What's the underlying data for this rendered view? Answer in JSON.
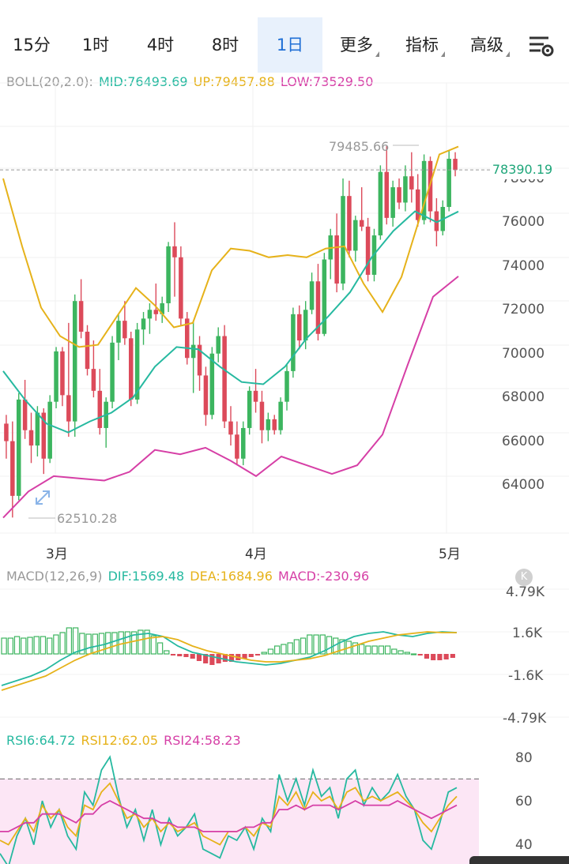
{
  "tabs": [
    {
      "label": "15分",
      "active": false
    },
    {
      "label": "1时",
      "active": false
    },
    {
      "label": "4时",
      "active": false
    },
    {
      "label": "8时",
      "active": false
    },
    {
      "label": "1日",
      "active": true
    },
    {
      "label": "更多",
      "dropdown": true
    },
    {
      "label": "指标",
      "dropdown": true
    },
    {
      "label": "高级",
      "dropdown": true
    }
  ],
  "settings_icon": "chart-settings-icon",
  "boll": {
    "name": "BOLL(20,2.0):",
    "mid": "MID:76493.69",
    "up": "UP:79457.88",
    "low": "LOW:73529.50",
    "colors": {
      "mid": "#26b9a0",
      "up": "#e6b21a",
      "low": "#d63fa6"
    }
  },
  "price": {
    "current": "78390.19",
    "high_label": "79485.66",
    "low_label": "62510.28",
    "y_ticks": [
      "78000",
      "76000",
      "74000",
      "72000",
      "70000",
      "68000",
      "66000",
      "64000"
    ],
    "x_ticks": [
      "3月",
      "4月",
      "5月"
    ]
  },
  "macd": {
    "name": "MACD(12,26,9)",
    "dif": "DIF:1569.48",
    "dea": "DEA:1684.96",
    "macd": "MACD:-230.96",
    "y_ticks": [
      "4.79K",
      "1.6K",
      "-1.6K",
      "-4.79K"
    ],
    "badge": "K"
  },
  "rsi": {
    "rsi6": "RSI6:64.72",
    "rsi12": "RSI12:62.05",
    "rsi24": "RSI24:58.23",
    "y_ticks": [
      "80",
      "60",
      "40"
    ]
  },
  "chart_data": {
    "type": "candlestick",
    "x_ticks": [
      "3月",
      "4月",
      "5月"
    ],
    "ylim": [
      62000,
      80500
    ],
    "candles": [
      [
        66800,
        67200,
        65200,
        66000
      ],
      [
        66000,
        66900,
        62510,
        63500
      ],
      [
        63500,
        68200,
        63300,
        67900
      ],
      [
        67900,
        68800,
        66100,
        66500
      ],
      [
        66500,
        67300,
        65000,
        65800
      ],
      [
        65800,
        67600,
        65300,
        67300
      ],
      [
        67300,
        67500,
        64500,
        65200
      ],
      [
        65200,
        68100,
        65000,
        67800
      ],
      [
        67800,
        70300,
        67500,
        70100
      ],
      [
        70100,
        70300,
        67600,
        68100
      ],
      [
        68100,
        71400,
        66200,
        66900
      ],
      [
        66900,
        72700,
        66200,
        72400
      ],
      [
        72400,
        73400,
        70700,
        71000
      ],
      [
        71000,
        71300,
        69000,
        69300
      ],
      [
        69300,
        70600,
        68000,
        68300
      ],
      [
        68300,
        69300,
        66300,
        66600
      ],
      [
        66600,
        68000,
        65700,
        67800
      ],
      [
        67800,
        70800,
        67500,
        70500
      ],
      [
        70500,
        71800,
        69700,
        71500
      ],
      [
        71500,
        72400,
        70400,
        70700
      ],
      [
        70700,
        71000,
        67600,
        67900
      ],
      [
        67900,
        71400,
        67700,
        71100
      ],
      [
        71100,
        71900,
        70400,
        71600
      ],
      [
        71600,
        72300,
        70900,
        72000
      ],
      [
        72000,
        73200,
        71500,
        71800
      ],
      [
        71800,
        72600,
        71400,
        72300
      ],
      [
        72300,
        75100,
        71900,
        74900
      ],
      [
        74900,
        76000,
        72600,
        74400
      ],
      [
        74400,
        74900,
        71300,
        71600
      ],
      [
        71600,
        71900,
        69500,
        69800
      ],
      [
        69800,
        71500,
        68200,
        70400
      ],
      [
        70400,
        70800,
        68300,
        69000
      ],
      [
        69000,
        69400,
        66700,
        67200
      ],
      [
        67200,
        70300,
        67000,
        70000
      ],
      [
        70000,
        71200,
        69600,
        70800
      ],
      [
        70800,
        71300,
        66600,
        66900
      ],
      [
        66900,
        67600,
        65800,
        66300
      ],
      [
        66300,
        66900,
        64900,
        65200
      ],
      [
        65200,
        66900,
        64900,
        66600
      ],
      [
        66600,
        68500,
        66300,
        68300
      ],
      [
        68300,
        69300,
        67300,
        67800
      ],
      [
        67800,
        68300,
        65900,
        66500
      ],
      [
        66500,
        67300,
        66000,
        67000
      ],
      [
        67000,
        67200,
        66300,
        66500
      ],
      [
        66500,
        68000,
        66300,
        67800
      ],
      [
        67800,
        69500,
        67400,
        69200
      ],
      [
        69200,
        72100,
        68900,
        71800
      ],
      [
        71800,
        72200,
        70200,
        70600
      ],
      [
        70600,
        72400,
        70200,
        72000
      ],
      [
        72000,
        73700,
        71800,
        73300
      ],
      [
        73300,
        74100,
        70600,
        70900
      ],
      [
        70900,
        74600,
        70800,
        74300
      ],
      [
        74300,
        75700,
        73400,
        75400
      ],
      [
        75400,
        76400,
        72800,
        73200
      ],
      [
        73200,
        78000,
        72900,
        77200
      ],
      [
        77200,
        77900,
        74400,
        74700
      ],
      [
        74700,
        76300,
        74200,
        76100
      ],
      [
        76100,
        77600,
        75600,
        75800
      ],
      [
        75800,
        76200,
        73300,
        73600
      ],
      [
        73600,
        75700,
        73300,
        75400
      ],
      [
        75400,
        78600,
        75200,
        78300
      ],
      [
        78300,
        79485,
        75900,
        76200
      ],
      [
        76200,
        77900,
        75800,
        77600
      ],
      [
        77600,
        78000,
        76600,
        76900
      ],
      [
        76900,
        78600,
        76500,
        78100
      ],
      [
        78100,
        79200,
        76900,
        77500
      ],
      [
        77500,
        78200,
        75800,
        76100
      ],
      [
        76100,
        79100,
        75900,
        78800
      ],
      [
        78800,
        79000,
        76000,
        76500
      ],
      [
        76500,
        77100,
        74900,
        75600
      ],
      [
        75600,
        77000,
        75400,
        76700
      ],
      [
        76700,
        79300,
        76500,
        78900
      ],
      [
        78900,
        79200,
        78100,
        78390
      ]
    ],
    "bands": {
      "up": [
        78000,
        74900,
        72100,
        70800,
        70300,
        70400,
        71700,
        73000,
        72200,
        71200,
        71400,
        73800,
        74800,
        74700,
        74400,
        74500,
        74400,
        74800,
        74900,
        73200,
        71900,
        73500,
        76300,
        79100,
        79457
      ],
      "mid": [
        69200,
        67900,
        66800,
        66400,
        66900,
        67300,
        68000,
        69400,
        70300,
        70200,
        69400,
        68700,
        68600,
        69400,
        70700,
        71700,
        72800,
        74400,
        75600,
        76500,
        76000,
        76493
      ],
      "low": [
        62500,
        63700,
        64400,
        64300,
        64200,
        64600,
        65600,
        65400,
        65700,
        65100,
        64400,
        65300,
        64900,
        64500,
        64900,
        66300,
        69500,
        72600,
        73529
      ]
    }
  }
}
